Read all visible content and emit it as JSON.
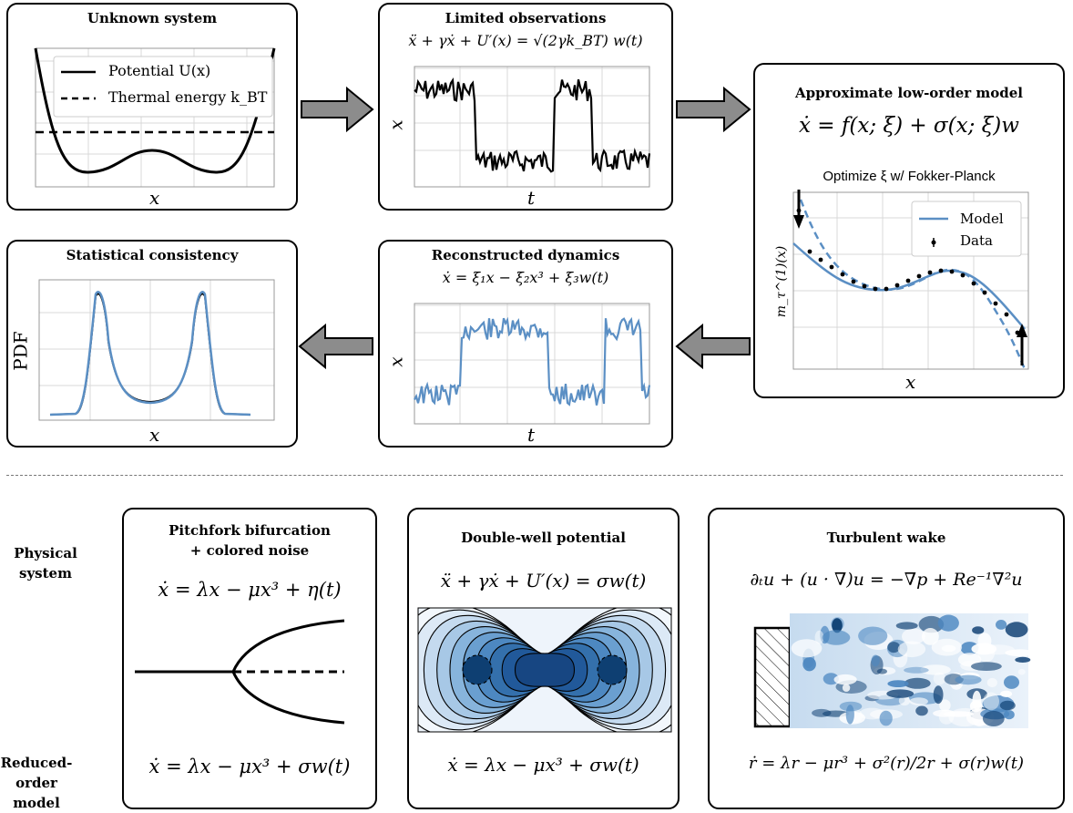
{
  "panels": {
    "unknown": {
      "title": "Unknown system",
      "legend_potential": "Potential U(x)",
      "legend_thermal": "Thermal energy k_BT",
      "xlabel": "x"
    },
    "observations": {
      "title": "Limited observations",
      "equation": "ẍ + γẋ + U′(x) = √(2γk_BT) w(t)",
      "xlabel": "t",
      "ylabel": "x"
    },
    "model": {
      "title": "Approximate low-order model",
      "equation": "ẋ = f(x; ξ) + σ(x; ξ)w",
      "subtitle": "Optimize ξ w/ Fokker-Planck",
      "legend_model": "Model",
      "legend_data": "Data",
      "xlabel": "x",
      "ylabel": "m_τ^(1)(x)"
    },
    "reconstructed": {
      "title": "Reconstructed dynamics",
      "equation": "ẋ = ξ₁x − ξ₂x³ + ξ₃w(t)",
      "xlabel": "t",
      "ylabel": "x"
    },
    "consistency": {
      "title": "Statistical consistency",
      "xlabel": "x",
      "ylabel": "PDF"
    }
  },
  "rows": {
    "physical": "Physical system",
    "reduced": "Reduced-order model"
  },
  "examples": {
    "pitchfork": {
      "title_line1": "Pitchfork bifurcation",
      "title_line2": "+ colored noise",
      "physical_eq": "ẋ = λx − μx³ + η(t)",
      "reduced_eq": "ẋ = λx − μx³ + σw(t)"
    },
    "doublewell": {
      "title": "Double-well potential",
      "physical_eq": "ẍ + γẋ + U′(x) = σw(t)",
      "reduced_eq": "ẋ = λx − μx³ + σw(t)"
    },
    "wake": {
      "title": "Turbulent wake",
      "physical_eq": "∂ₜu + (u · ∇)u = −∇p + Re⁻¹∇²u",
      "reduced_eq": "ṙ = λr − μr³ + σ²(r)/2r + σ(r)w(t)"
    }
  },
  "colors": {
    "model_blue": "#5b8fc4",
    "dark_navy": "#0e3f72",
    "arrow_gray": "#8c8c8c"
  }
}
